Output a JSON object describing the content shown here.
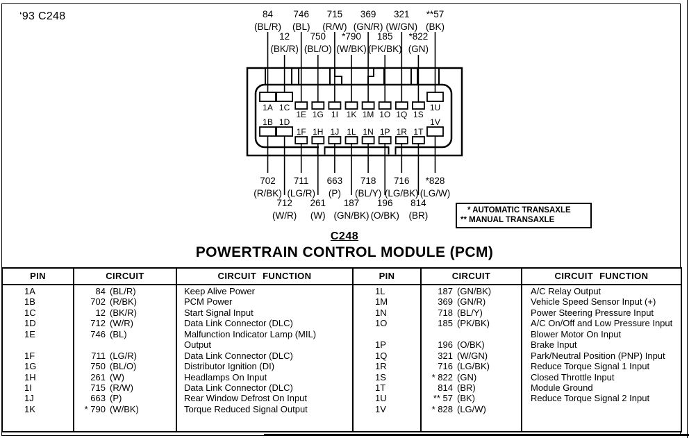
{
  "page": {
    "corner_label": "‘93 C248"
  },
  "diagram": {
    "title": "C248",
    "subtitle": "POWERTRAIN CONTROL MODULE (PCM)",
    "notes": [
      "* AUTOMATIC TRANSAXLE",
      "** MANUAL TRANSAXLE"
    ],
    "top_wires": [
      {
        "pin": "1A",
        "circuit": "84",
        "color": "(BL/R)"
      },
      {
        "pin": "1C",
        "circuit": "12",
        "color": "(BK/R)"
      },
      {
        "pin": "1E",
        "circuit": "746",
        "color": "(BL)"
      },
      {
        "pin": "1G",
        "circuit": "750",
        "color": "(BL/O)"
      },
      {
        "pin": "1I",
        "circuit": "715",
        "color": "(R/W)"
      },
      {
        "pin": "1K",
        "circuit": "*790",
        "color": "(W/BK)"
      },
      {
        "pin": "1M",
        "circuit": "369",
        "color": "(GN/R)"
      },
      {
        "pin": "1O",
        "circuit": "185",
        "color": "(PK/BK)"
      },
      {
        "pin": "1Q",
        "circuit": "321",
        "color": "(W/GN)"
      },
      {
        "pin": "1S",
        "circuit": "*822",
        "color": "(GN)"
      },
      {
        "pin": "1U",
        "circuit": "**57",
        "color": "(BK)"
      }
    ],
    "bottom_wires": [
      {
        "pin": "1B",
        "circuit": "702",
        "color": "(R/BK)"
      },
      {
        "pin": "1D",
        "circuit": "712",
        "color": "(W/R)"
      },
      {
        "pin": "1F",
        "circuit": "711",
        "color": "(LG/R)"
      },
      {
        "pin": "1H",
        "circuit": "261",
        "color": "(W)"
      },
      {
        "pin": "1J",
        "circuit": "663",
        "color": "(P)"
      },
      {
        "pin": "1L",
        "circuit": "187",
        "color": "(GN/BK)"
      },
      {
        "pin": "1N",
        "circuit": "718",
        "color": "(BL/Y)"
      },
      {
        "pin": "1P",
        "circuit": "196",
        "color": "(O/BK)"
      },
      {
        "pin": "1R",
        "circuit": "716",
        "color": "(LG/BK)"
      },
      {
        "pin": "1T",
        "circuit": "814",
        "color": "(BR)"
      },
      {
        "pin": "1V",
        "circuit": "*828",
        "color": "(LG/W)"
      }
    ]
  },
  "table": {
    "headers": [
      "PIN",
      "CIRCUIT",
      "CIRCUIT FUNCTION",
      "PIN",
      "CIRCUIT",
      "CIRCUIT FUNCTION"
    ],
    "left_rows": [
      {
        "pin": "1A",
        "circuit": "84 (BL/R)",
        "function": "Keep Alive Power"
      },
      {
        "pin": "1B",
        "circuit": "702 (R/BK)",
        "function": "PCM Power"
      },
      {
        "pin": "1C",
        "circuit": "12 (BK/R)",
        "function": "Start Signal Input"
      },
      {
        "pin": "1D",
        "circuit": "712 (W/R)",
        "function": "Data Link Connector (DLC)"
      },
      {
        "pin": "1E",
        "circuit": "746 (BL)",
        "function": [
          "Malfunction Indicator Lamp (MIL)",
          "Output"
        ]
      },
      {
        "pin": "1F",
        "circuit": "711 (LG/R)",
        "function": "Data Link Connector (DLC)"
      },
      {
        "pin": "1G",
        "circuit": "750 (BL/O)",
        "function": "Distributor Ignition (DI)"
      },
      {
        "pin": "1H",
        "circuit": "261 (W)",
        "function": "Headlamps On Input"
      },
      {
        "pin": "1I",
        "circuit": "715 (R/W)",
        "function": "Data Link Connector (DLC)"
      },
      {
        "pin": "1J",
        "circuit": "663 (P)",
        "function": "Rear Window Defrost On Input"
      },
      {
        "pin": "1K",
        "circuit": "* 790 (W/BK)",
        "function": "Torque Reduced Signal Output"
      }
    ],
    "right_rows": [
      {
        "pin": "1L",
        "circuit": "187 (GN/BK)",
        "function": "A/C Relay Output"
      },
      {
        "pin": "1M",
        "circuit": "369 (GN/R)",
        "function": "Vehicle Speed Sensor Input (+)"
      },
      {
        "pin": "1N",
        "circuit": "718 (BL/Y)",
        "function": "Power Steering Pressure Input"
      },
      {
        "pin": "1O",
        "circuit": "185 (PK/BK)",
        "function": [
          "A/C On/Off and Low Pressure Input",
          "Blower Motor On Input"
        ]
      },
      {
        "pin": "1P",
        "circuit": "196 (O/BK)",
        "function": "Brake Input"
      },
      {
        "pin": "1Q",
        "circuit": "321 (W/GN)",
        "function": "Park/Neutral Position (PNP) Input"
      },
      {
        "pin": "1R",
        "circuit": "716 (LG/BK)",
        "function": "Reduce Torque Signal 1 Input"
      },
      {
        "pin": "1S",
        "circuit": "* 822 (GN)",
        "function": "Closed Throttle Input"
      },
      {
        "pin": "1T",
        "circuit": "814 (BR)",
        "function": "Module Ground"
      },
      {
        "pin": "1U",
        "circuit": "** 57 (BK)",
        "function": "Reduce Torque Signal 2 Input"
      },
      {
        "pin": "1V",
        "circuit": "* 828 (LG/W)",
        "function": ""
      }
    ]
  }
}
